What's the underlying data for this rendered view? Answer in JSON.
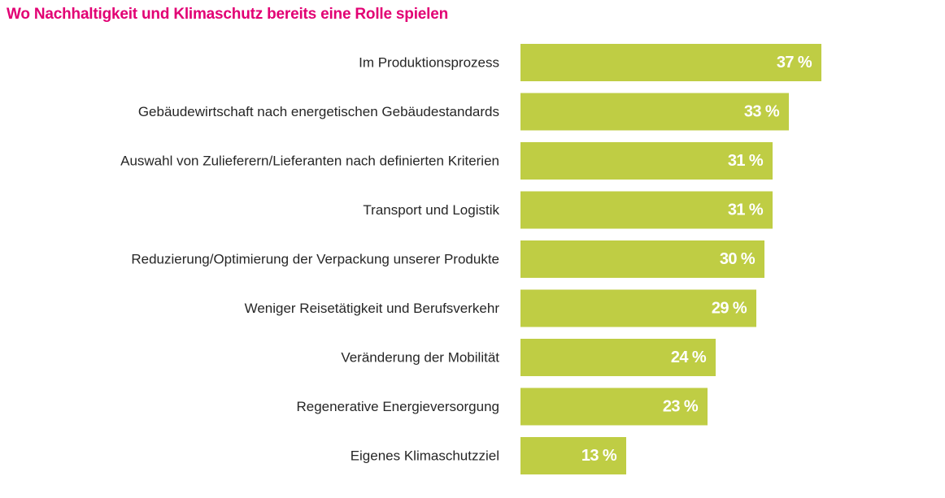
{
  "chart_data": {
    "type": "bar",
    "orientation": "horizontal",
    "title": "Wo Nachhaltigkeit und Klimaschutz bereits eine Rolle spielen",
    "categories": [
      "Im Produktionsprozess",
      "Gebäudewirtschaft nach energetischen Gebäudestandards",
      "Auswahl von Zulieferern/Lieferanten nach definierten Kriterien",
      "Transport und Logistik",
      "Reduzierung/Optimierung der Verpackung unserer Produkte",
      "Weniger Reisetätigkeit und Berufsverkehr",
      "Veränderung der Mobilität",
      "Regenerative Energieversorgung",
      "Eigenes Klimaschutzziel"
    ],
    "values": [
      37,
      33,
      31,
      31,
      30,
      29,
      24,
      23,
      13
    ],
    "value_labels": [
      "37 %",
      "33 %",
      "31 %",
      "31 %",
      "30 %",
      "29 %",
      "24 %",
      "23 %",
      "13 %"
    ],
    "unit": "%",
    "grid": false,
    "legend": "none",
    "colors": {
      "bar": "#bfcd44",
      "title": "#e20074",
      "value_label": "#ffffff",
      "category_label": "#262626"
    }
  }
}
